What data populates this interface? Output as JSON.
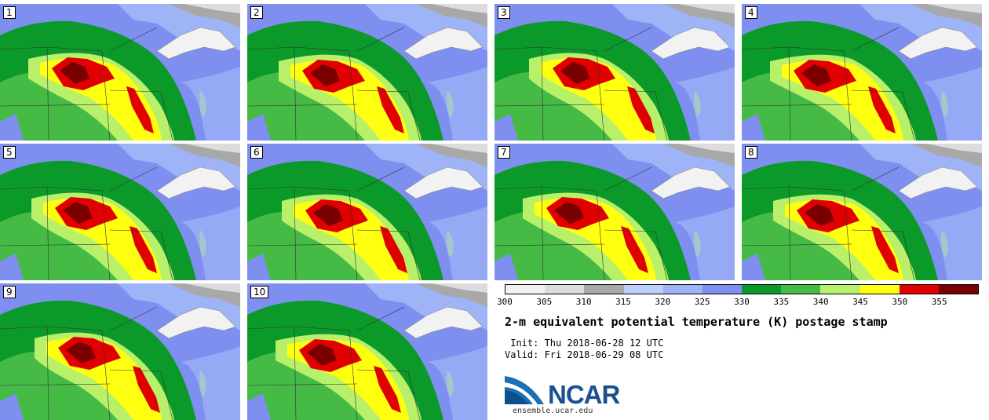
{
  "product": {
    "title": "2-m equivalent potential temperature (K) postage stamp",
    "init": " Init: Thu 2018-06-28 12 UTC",
    "valid": "Valid: Fri 2018-06-29 08 UTC"
  },
  "members": [
    "1",
    "2",
    "3",
    "4",
    "5",
    "6",
    "7",
    "8",
    "9",
    "10"
  ],
  "colorbar": {
    "ticks": [
      "300",
      "305",
      "310",
      "315",
      "320",
      "325",
      "330",
      "335",
      "340",
      "345",
      "350",
      "355"
    ],
    "colors": [
      "#f2f2f2",
      "#dcdcdc",
      "#a8a8a8",
      "#bfcffb",
      "#9fb3f7",
      "#7f8ff0",
      "#0b9a2a",
      "#45bb45",
      "#b8f06a",
      "#ffff10",
      "#e00000",
      "#7a0000"
    ]
  },
  "logo": {
    "name": "NCAR",
    "url": "ensemble.ucar.edu"
  }
}
